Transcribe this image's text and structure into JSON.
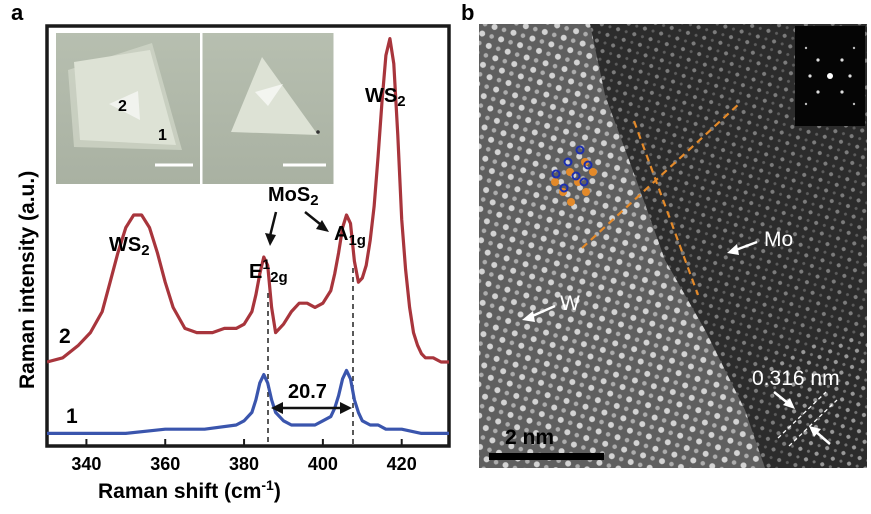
{
  "panel_a": {
    "letter": "a",
    "inset_labels": {
      "region_2": "2",
      "region_1": "1"
    },
    "annotations": {
      "ws2_left": "WS",
      "ws2_right": "WS",
      "ws2_sub": "2",
      "mos2": "MoS",
      "mos2_sub": "2",
      "e_main": "E",
      "e_sup": "1",
      "e_sub": "2g",
      "a_main": "A",
      "a_sub": "1g",
      "separation": "20.7"
    }
  },
  "panel_b": {
    "letter": "b",
    "labels": {
      "mo": "Mo",
      "w": "W",
      "lattice": "0.316 nm",
      "scale_bar": "2 nm"
    }
  },
  "colors": {
    "curve_2": "#a8353c",
    "curve_1": "#3a55ad",
    "dashed_lines": "#e48a2a"
  },
  "chart_data": {
    "type": "line",
    "xlabel": "Raman shift (cm",
    "xlabel_sup": "-1",
    "xlabel_close": ")",
    "ylabel": "Raman intensity (a.u.)",
    "xlim": [
      330,
      432
    ],
    "ylim": [
      0,
      1
    ],
    "x_ticks": [
      340,
      360,
      380,
      400,
      420
    ],
    "grid": false,
    "series": [
      {
        "name": "2",
        "color": "#a8353c",
        "x": [
          330,
          334,
          338,
          341,
          344,
          346,
          348,
          350,
          352,
          354,
          356,
          358,
          360,
          362,
          365,
          368,
          372,
          375,
          378,
          380,
          382,
          383,
          384,
          385,
          386,
          387,
          388,
          390,
          392,
          394,
          396,
          398,
          400,
          402,
          403,
          404,
          405,
          406,
          407,
          408,
          409,
          410,
          411,
          412,
          413,
          414,
          415,
          416,
          417,
          418,
          419,
          420,
          421,
          422,
          423,
          424,
          425,
          426,
          428,
          430,
          432
        ],
        "y": [
          0.2,
          0.21,
          0.24,
          0.27,
          0.32,
          0.39,
          0.46,
          0.52,
          0.55,
          0.55,
          0.52,
          0.46,
          0.39,
          0.33,
          0.28,
          0.27,
          0.27,
          0.28,
          0.28,
          0.29,
          0.32,
          0.36,
          0.41,
          0.45,
          0.43,
          0.33,
          0.27,
          0.29,
          0.32,
          0.34,
          0.34,
          0.33,
          0.34,
          0.37,
          0.41,
          0.46,
          0.52,
          0.55,
          0.53,
          0.44,
          0.39,
          0.4,
          0.43,
          0.49,
          0.57,
          0.69,
          0.82,
          0.93,
          0.97,
          0.91,
          0.74,
          0.54,
          0.42,
          0.33,
          0.27,
          0.24,
          0.22,
          0.21,
          0.21,
          0.2,
          0.2
        ]
      },
      {
        "name": "1",
        "color": "#3a55ad",
        "x": [
          330,
          340,
          350,
          360,
          370,
          378,
          380,
          382,
          383,
          384,
          385,
          386,
          387,
          388,
          390,
          392,
          394,
          396,
          398,
          400,
          402,
          403,
          404,
          405,
          406,
          407,
          408,
          409,
          410,
          412,
          414,
          416,
          420,
          425,
          432
        ],
        "y": [
          0.03,
          0.03,
          0.03,
          0.04,
          0.04,
          0.05,
          0.06,
          0.08,
          0.11,
          0.15,
          0.17,
          0.15,
          0.11,
          0.08,
          0.06,
          0.05,
          0.05,
          0.05,
          0.05,
          0.06,
          0.07,
          0.09,
          0.12,
          0.16,
          0.18,
          0.16,
          0.11,
          0.08,
          0.06,
          0.05,
          0.05,
          0.04,
          0.04,
          0.03,
          0.03
        ]
      }
    ]
  }
}
